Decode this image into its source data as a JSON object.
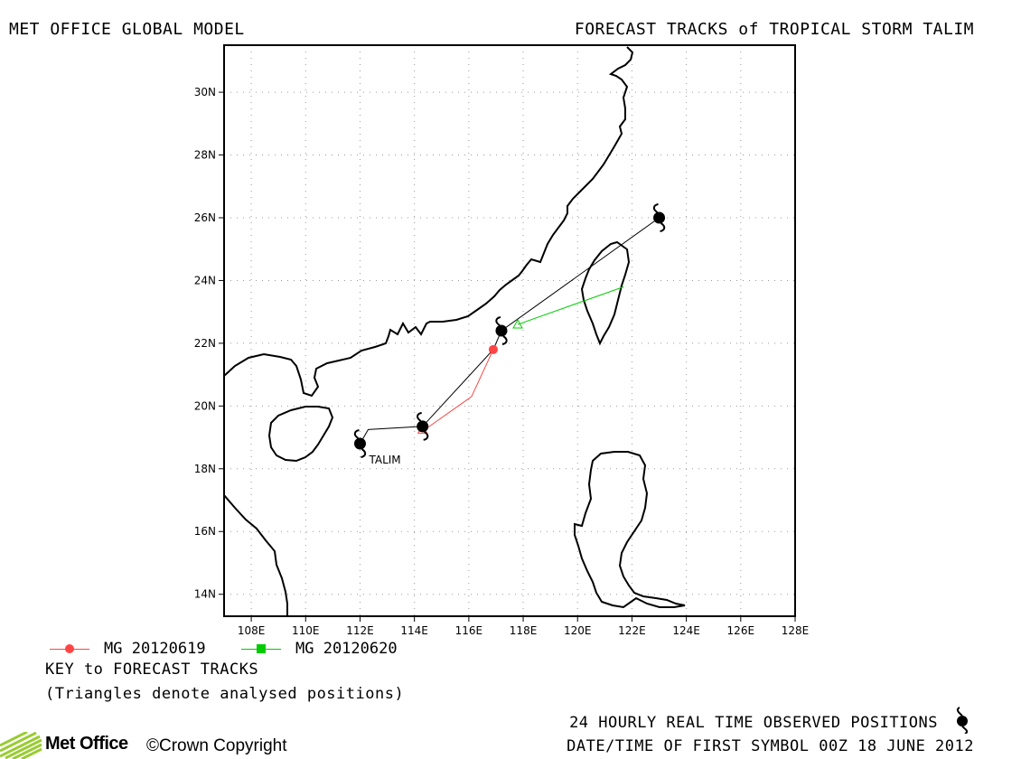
{
  "header": {
    "left_title": "MET OFFICE GLOBAL MODEL",
    "right_title": "FORECAST TRACKS of TROPICAL STORM TALIM"
  },
  "map": {
    "lon_range": [
      107,
      128
    ],
    "lat_range": [
      13.3,
      31.5
    ],
    "lon_ticks": [
      "108E",
      "110E",
      "112E",
      "114E",
      "116E",
      "118E",
      "120E",
      "122E",
      "124E",
      "126E",
      "128E"
    ],
    "lat_ticks": [
      "14N",
      "16N",
      "18N",
      "20N",
      "22N",
      "24N",
      "26N",
      "28N",
      "30N"
    ],
    "storm_label": "TALIM",
    "observed_track": [
      [
        112.0,
        18.8
      ],
      [
        112.3,
        19.25
      ],
      [
        114.3,
        19.35
      ],
      [
        116.9,
        21.8
      ],
      [
        117.2,
        22.4
      ],
      [
        123.0,
        26.0
      ]
    ],
    "forecasts": [
      {
        "name": "MG 20120619",
        "color": "#ff4444",
        "track": [
          [
            114.3,
            19.2
          ],
          [
            116.1,
            20.3
          ],
          [
            116.9,
            21.8
          ]
        ],
        "points": [
          [
            116.9,
            21.8
          ]
        ],
        "analysed": [
          [
            114.3,
            19.25
          ]
        ]
      },
      {
        "name": "MG 20120620",
        "color": "#00cc00",
        "track": [
          [
            117.8,
            22.6
          ],
          [
            121.7,
            23.8
          ]
        ],
        "points": [],
        "analysed": [
          [
            117.8,
            22.6
          ]
        ]
      }
    ],
    "storm_symbols": [
      [
        112.0,
        18.8
      ],
      [
        114.3,
        19.35
      ],
      [
        117.2,
        22.4
      ],
      [
        123.0,
        26.0
      ]
    ]
  },
  "legend": {
    "items": [
      {
        "label": "MG 20120619",
        "color": "#ff4444",
        "marker": "circle"
      },
      {
        "label": "MG 20120620",
        "color": "#00cc00",
        "marker": "square"
      }
    ],
    "key_title": "KEY to FORECAST TRACKS",
    "note": "(Triangles denote analysed positions)"
  },
  "footer": {
    "observed": "24 HOURLY REAL TIME OBSERVED POSITIONS",
    "date": "DATE/TIME OF FIRST SYMBOL 00Z 18 JUNE 2012",
    "logo_text": "Met Office",
    "copyright": "©Crown Copyright"
  }
}
